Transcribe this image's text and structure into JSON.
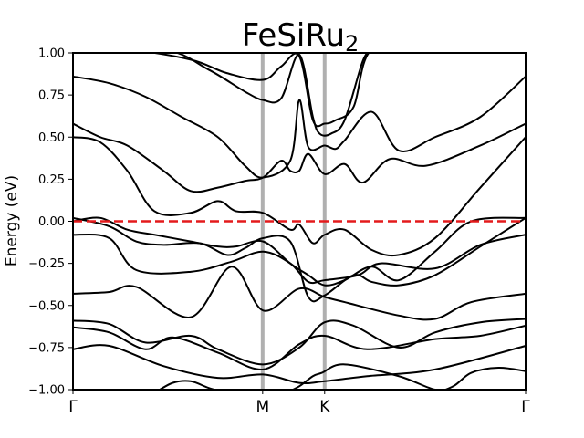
{
  "chart_data": {
    "type": "line",
    "title": "FeSiRu",
    "title_subscript": "2",
    "xlabel": "",
    "ylabel": "Energy (eV)",
    "ylim": [
      -1.0,
      1.0
    ],
    "yticks": [
      -1.0,
      -0.75,
      -0.5,
      -0.25,
      0.0,
      0.25,
      0.5,
      0.75,
      1.0
    ],
    "ytick_labels": [
      "−1.00",
      "−0.75",
      "−0.50",
      "−0.25",
      "0.00",
      "0.25",
      "0.50",
      "0.75",
      "1.00"
    ],
    "x_path_labels": [
      "Γ",
      "M",
      "K",
      "Γ"
    ],
    "x_path_positions": [
      0.0,
      0.419,
      0.556,
      1.0
    ],
    "xlim": [
      0.0,
      1.0
    ],
    "fermi_level": 0.0,
    "colors": {
      "bands": "#000000",
      "fermi": "#e41a1c",
      "high_symmetry": "#b0b0b0"
    },
    "series": [
      {
        "x": [
          0.0,
          0.08,
          0.2,
          0.32,
          0.42,
          0.5,
          0.556,
          0.65,
          0.8,
          1.0
        ],
        "y": [
          -0.76,
          -0.74,
          -0.86,
          -0.93,
          -0.91,
          -0.96,
          -0.95,
          -0.92,
          -0.88,
          -0.74
        ]
      },
      {
        "x": [
          0.0,
          0.08,
          0.16,
          0.22,
          0.32,
          0.42,
          0.5,
          0.556,
          0.65,
          0.8,
          0.9,
          1.0
        ],
        "y": [
          -0.63,
          -0.66,
          -0.76,
          -0.69,
          -0.78,
          -0.88,
          -0.73,
          -0.68,
          -0.76,
          -0.7,
          -0.68,
          -0.62
        ]
      },
      {
        "x": [
          0.0,
          0.08,
          0.16,
          0.26,
          0.32,
          0.42,
          0.5,
          0.556,
          0.62,
          0.72,
          0.8,
          0.9,
          1.0
        ],
        "y": [
          -0.59,
          -0.61,
          -0.72,
          -0.68,
          -0.76,
          -0.85,
          -0.75,
          -0.6,
          -0.62,
          -0.75,
          -0.66,
          -0.6,
          -0.58
        ]
      },
      {
        "x": [
          0.0,
          0.08,
          0.14,
          0.26,
          0.35,
          0.42,
          0.5,
          0.556,
          0.6,
          0.72,
          0.8,
          0.88,
          1.0
        ],
        "y": [
          -0.43,
          -0.42,
          -0.39,
          -0.57,
          -0.27,
          -0.53,
          -0.4,
          -0.45,
          -0.48,
          -0.56,
          -0.58,
          -0.48,
          -0.43
        ]
      },
      {
        "x": [
          0.0,
          0.08,
          0.14,
          0.26,
          0.35,
          0.42,
          0.48,
          0.52,
          0.556,
          0.63,
          0.68,
          0.8,
          0.9,
          1.0
        ],
        "y": [
          -0.08,
          -0.1,
          -0.29,
          -0.3,
          -0.24,
          -0.18,
          -0.25,
          -0.36,
          -0.35,
          -0.32,
          -0.25,
          -0.28,
          -0.14,
          -0.08
        ]
      },
      {
        "x": [
          0.0,
          0.08,
          0.14,
          0.2,
          0.28,
          0.34,
          0.38,
          0.42,
          0.48,
          0.52,
          0.556,
          0.62,
          0.66,
          0.72,
          0.8,
          0.9,
          1.0
        ],
        "y": [
          0.02,
          -0.03,
          -0.12,
          -0.14,
          -0.13,
          -0.2,
          -0.16,
          -0.1,
          -0.12,
          -0.45,
          -0.44,
          -0.32,
          -0.36,
          -0.38,
          -0.32,
          -0.15,
          0.02
        ]
      },
      {
        "x": [
          0.0,
          0.06,
          0.12,
          0.18,
          0.26,
          0.32,
          0.36,
          0.42,
          0.48,
          0.52,
          0.556,
          0.6,
          0.66,
          0.72,
          0.8,
          0.88,
          1.0
        ],
        "y": [
          0.0,
          0.02,
          -0.05,
          -0.08,
          -0.12,
          -0.15,
          -0.15,
          -0.12,
          -0.25,
          -0.32,
          -0.38,
          -0.35,
          -0.27,
          -0.35,
          -0.18,
          0.0,
          0.02
        ]
      },
      {
        "x": [
          0.0,
          0.06,
          0.12,
          0.18,
          0.26,
          0.32,
          0.36,
          0.42,
          0.48,
          0.5,
          0.53,
          0.556,
          0.6,
          0.66,
          0.72,
          0.8,
          0.9,
          1.0
        ],
        "y": [
          0.5,
          0.47,
          0.3,
          0.06,
          0.05,
          0.12,
          0.06,
          0.05,
          -0.05,
          -0.02,
          -0.13,
          -0.08,
          -0.05,
          -0.17,
          -0.2,
          -0.1,
          0.2,
          0.5
        ]
      },
      {
        "x": [
          0.0,
          0.06,
          0.12,
          0.2,
          0.26,
          0.32,
          0.38,
          0.42,
          0.46,
          0.48,
          0.5,
          0.52,
          0.556,
          0.6,
          0.64,
          0.7,
          0.78,
          0.9,
          1.0
        ],
        "y": [
          0.58,
          0.5,
          0.45,
          0.3,
          0.18,
          0.2,
          0.24,
          0.26,
          0.36,
          0.3,
          0.3,
          0.4,
          0.28,
          0.34,
          0.23,
          0.37,
          0.33,
          0.45,
          0.58
        ]
      },
      {
        "x": [
          0.0,
          0.08,
          0.16,
          0.24,
          0.32,
          0.38,
          0.42,
          0.48,
          0.5,
          0.52,
          0.556,
          0.58,
          0.6,
          0.66,
          0.72,
          0.8,
          0.9,
          1.0
        ],
        "y": [
          0.86,
          0.82,
          0.74,
          0.62,
          0.5,
          0.33,
          0.26,
          0.36,
          0.72,
          0.44,
          0.45,
          0.43,
          0.48,
          0.65,
          0.42,
          0.5,
          0.62,
          0.86
        ]
      },
      {
        "x": [
          0.0,
          0.12,
          0.26,
          0.34,
          0.42,
          0.46,
          0.5,
          0.53,
          0.556,
          0.58,
          0.62,
          0.66,
          0.78,
          0.9,
          1.0
        ],
        "y": [
          1.02,
          1.02,
          0.96,
          0.88,
          0.84,
          0.92,
          0.98,
          0.6,
          0.58,
          0.6,
          0.68,
          1.02,
          1.02,
          1.02,
          1.02
        ]
      },
      {
        "x": [
          0.0,
          0.2,
          0.3,
          0.38,
          0.42,
          0.46,
          0.5,
          0.53,
          0.545,
          0.57,
          0.6,
          0.64,
          0.66
        ],
        "y": [
          1.02,
          1.02,
          0.9,
          0.77,
          0.72,
          0.73,
          0.99,
          0.62,
          0.52,
          0.52,
          0.6,
          0.95,
          1.02
        ]
      },
      {
        "x": [
          0.47,
          0.5,
          0.53,
          0.55,
          0.6,
          0.72,
          0.8,
          0.84,
          0.88,
          0.94,
          1.0
        ],
        "y": [
          -1.02,
          -0.98,
          -0.92,
          -0.9,
          -0.85,
          -0.92,
          -1.0,
          -0.98,
          -0.9,
          -0.87,
          -0.89
        ]
      },
      {
        "x": [
          0.18,
          0.22,
          0.26,
          0.3,
          0.34
        ],
        "y": [
          -1.02,
          -0.96,
          -0.95,
          -0.99,
          -1.02
        ]
      }
    ]
  }
}
